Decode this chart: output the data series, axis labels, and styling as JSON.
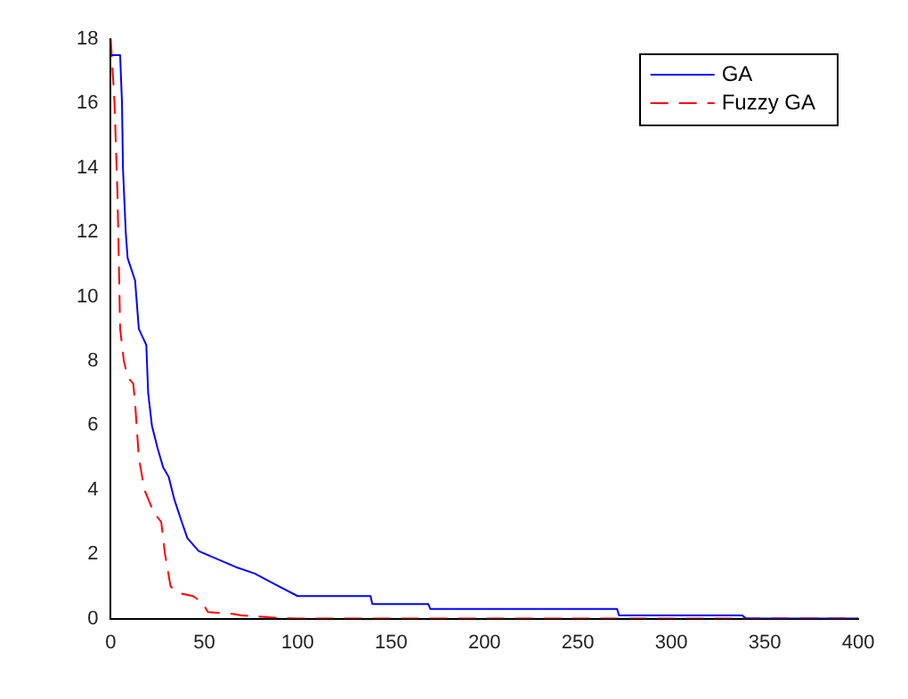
{
  "chart_data": {
    "type": "line",
    "xlim": [
      0,
      400
    ],
    "xticks": [
      0,
      50,
      100,
      150,
      200,
      250,
      300,
      350,
      400
    ],
    "ylim": [
      0,
      18
    ],
    "yticks": [
      0,
      2,
      4,
      6,
      8,
      10,
      12,
      14,
      16,
      18
    ],
    "grid": false,
    "legend": "top right",
    "marker": "none",
    "series": [
      {
        "name": "GA",
        "color": "#0000ff",
        "line_style": "solid",
        "x": [
          0,
          1,
          5,
          6,
          6.5,
          8,
          9,
          13,
          15,
          19,
          20,
          22,
          25,
          28,
          31,
          34,
          38,
          41,
          47,
          55,
          67,
          77,
          90,
          100,
          139,
          140,
          170,
          171,
          271,
          272,
          338,
          340,
          400
        ],
        "values": [
          17.5,
          17.5,
          17.5,
          16,
          14,
          12,
          11.2,
          10.5,
          9,
          8.5,
          7,
          6,
          5.3,
          4.7,
          4.4,
          3.7,
          3,
          2.5,
          2.1,
          1.9,
          1.6,
          1.4,
          1,
          0.7,
          0.7,
          0.45,
          0.45,
          0.3,
          0.3,
          0.1,
          0.1,
          0,
          0
        ]
      },
      {
        "name": "Fuzzy GA",
        "color": "#ff0000",
        "line_style": "dashed",
        "x": [
          0,
          2,
          3.5,
          4,
          5,
          7,
          9,
          12,
          13,
          15,
          18,
          23,
          27,
          29,
          32,
          36,
          44,
          49,
          52,
          65,
          70,
          90,
          100,
          400
        ],
        "values": [
          18,
          16,
          13.3,
          12,
          9,
          8,
          7.5,
          7.3,
          6.7,
          5,
          4,
          3.3,
          3,
          2,
          1,
          0.8,
          0.7,
          0.5,
          0.2,
          0.15,
          0.1,
          0.02,
          0,
          0
        ]
      }
    ]
  }
}
